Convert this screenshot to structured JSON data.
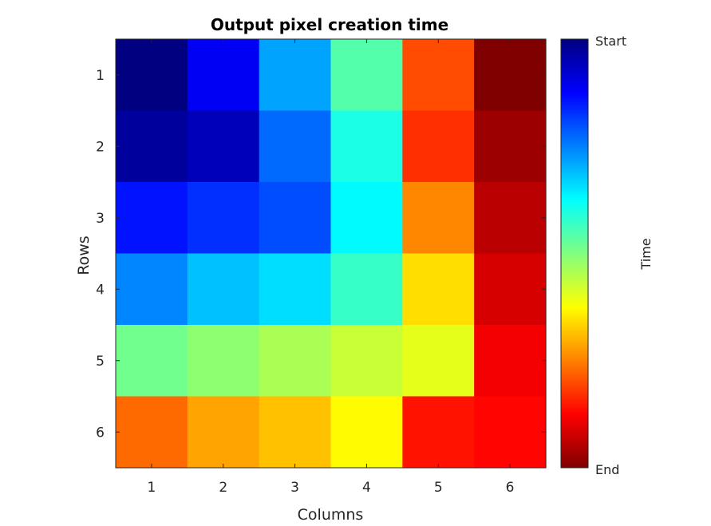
{
  "chart_data": {
    "type": "heatmap",
    "title": "Output pixel creation time",
    "xlabel": "Columns",
    "ylabel": "Rows",
    "columns": [
      1,
      2,
      3,
      4,
      5,
      6
    ],
    "rows": [
      1,
      2,
      3,
      4,
      5,
      6
    ],
    "colormap": "jet",
    "clim": [
      1,
      36
    ],
    "values": [
      [
        1,
        5,
        11,
        17,
        29,
        36
      ],
      [
        2,
        3,
        9,
        15,
        30,
        35
      ],
      [
        6,
        7,
        8,
        14,
        27,
        34
      ],
      [
        10,
        12,
        13,
        16,
        24,
        33
      ],
      [
        18,
        19,
        20,
        21,
        22,
        32
      ],
      [
        28,
        26,
        25,
        23,
        31,
        31.5
      ]
    ],
    "colorbar": {
      "label": "Time",
      "tick_labels": [
        "Start",
        "End"
      ]
    }
  }
}
